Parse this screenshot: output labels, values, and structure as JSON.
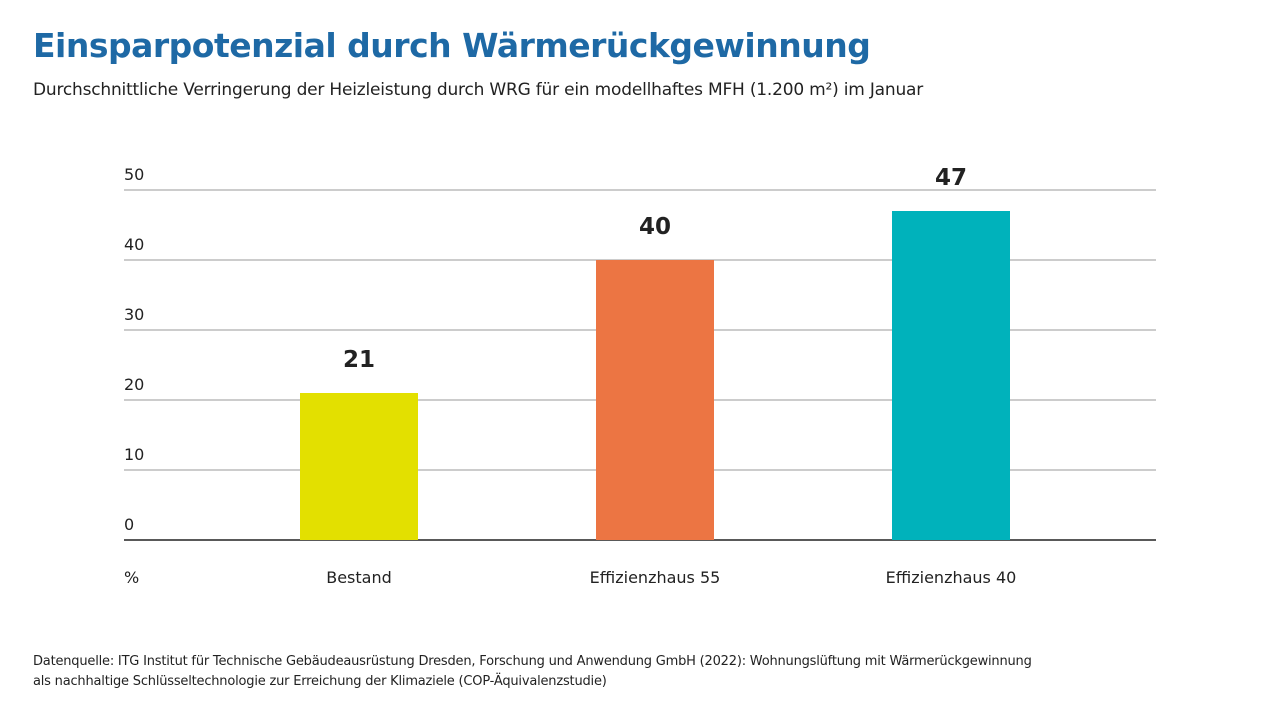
{
  "title": "Einsparpotenzial durch Wärmerückgewinnung",
  "subtitle": "Durchschnittliche Verringerung der Heizleistung durch WRG für ein modellhaftes MFH (1.200 m²) im Januar",
  "source": {
    "line1": "Datenquelle: ITG Institut für Technische Gebäudeausrüstung Dresden, Forschung und Anwendung GmbH (2022): Wohnungslüftung mit Wärmerückgewinnung",
    "line2": "als nachhaltige Schlüsseltechnologie zur Erreichung der Klimaziele (COP-Äquivalenzstudie)"
  },
  "chart_data": {
    "type": "bar",
    "categories": [
      "Bestand",
      "Effizienzhaus 55",
      "Effizienzhaus 40"
    ],
    "values": [
      21,
      40,
      47
    ],
    "colors": [
      "#e3e000",
      "#ec7543",
      "#00b2bb"
    ],
    "data_labels": [
      "21",
      "40",
      "47"
    ],
    "ylabel": "%",
    "ylim": [
      0,
      50
    ],
    "yticks": [
      0,
      10,
      20,
      30,
      40,
      50
    ],
    "grid": true,
    "legend": "none"
  }
}
